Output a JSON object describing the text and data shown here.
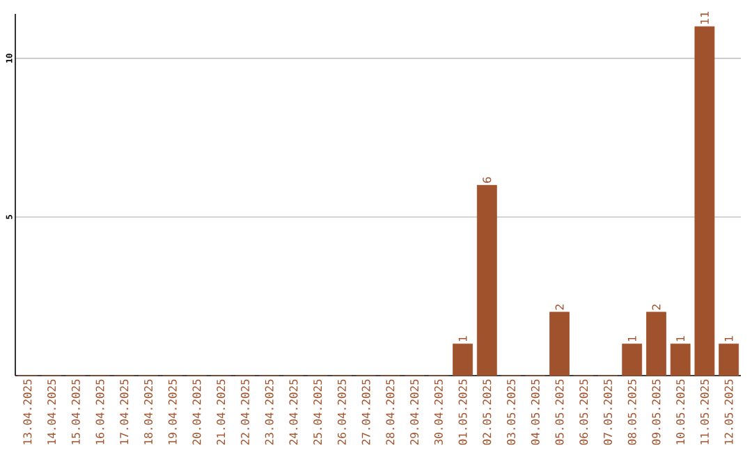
{
  "chart_data": {
    "type": "bar",
    "categories": [
      "13.04.2025",
      "14.04.2025",
      "15.04.2025",
      "16.04.2025",
      "17.04.2025",
      "18.04.2025",
      "19.04.2025",
      "20.04.2025",
      "21.04.2025",
      "22.04.2025",
      "23.04.2025",
      "24.04.2025",
      "25.04.2025",
      "26.04.2025",
      "27.04.2025",
      "28.04.2025",
      "29.04.2025",
      "30.04.2025",
      "01.05.2025",
      "02.05.2025",
      "03.05.2025",
      "04.05.2025",
      "05.05.2025",
      "06.05.2025",
      "07.05.2025",
      "08.05.2025",
      "09.05.2025",
      "10.05.2025",
      "11.05.2025",
      "12.05.2025"
    ],
    "values": [
      0,
      0,
      0,
      0,
      0,
      0,
      0,
      0,
      0,
      0,
      0,
      0,
      0,
      0,
      0,
      0,
      0,
      0,
      1,
      6,
      0,
      0,
      2,
      0,
      0,
      1,
      2,
      1,
      11,
      1
    ],
    "value_labels": [
      null,
      null,
      null,
      null,
      null,
      null,
      null,
      null,
      null,
      null,
      null,
      null,
      null,
      null,
      null,
      null,
      null,
      null,
      "1",
      "6",
      null,
      null,
      "2",
      null,
      null,
      "1",
      "2",
      "1",
      "11",
      "1"
    ],
    "color": "#a0522d",
    "ylim": [
      0,
      11.4
    ],
    "yticks": [
      5,
      10
    ],
    "grid": "y"
  }
}
